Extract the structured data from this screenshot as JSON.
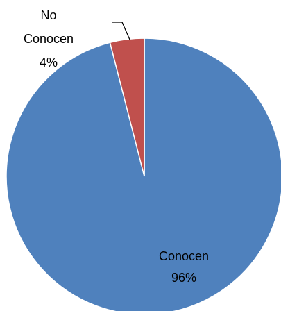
{
  "chart_data": {
    "type": "pie",
    "title": "",
    "slices": [
      {
        "label": "Conocen",
        "value": 96,
        "value_label": "96%",
        "color": "#4F81BD"
      },
      {
        "label": "No Conocen",
        "value": 4,
        "value_label": "4%",
        "color": "#C0504D"
      }
    ],
    "legend": "none",
    "data_labels": "category name and percentage"
  }
}
